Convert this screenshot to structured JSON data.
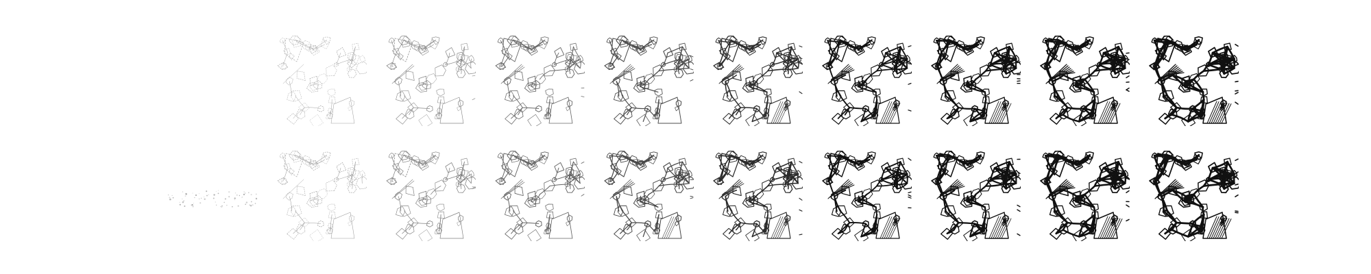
{
  "figure": {
    "rows": [
      {
        "id": "top",
        "frames": [
          {
            "step": 0,
            "level": 0.0
          },
          {
            "step": 1,
            "level": 0.15
          },
          {
            "step": 2,
            "level": 0.25
          },
          {
            "step": 3,
            "level": 0.38
          },
          {
            "step": 4,
            "level": 0.5
          },
          {
            "step": 5,
            "level": 0.62
          },
          {
            "step": 6,
            "level": 0.74
          },
          {
            "step": 7,
            "level": 0.85
          },
          {
            "step": 8,
            "level": 0.93
          },
          {
            "step": 9,
            "level": 1.0
          }
        ]
      },
      {
        "id": "bottom",
        "frames": [
          {
            "step": 0,
            "level": 0.04
          },
          {
            "step": 1,
            "level": 0.17
          },
          {
            "step": 2,
            "level": 0.28
          },
          {
            "step": 3,
            "level": 0.4
          },
          {
            "step": 4,
            "level": 0.52
          },
          {
            "step": 5,
            "level": 0.64
          },
          {
            "step": 6,
            "level": 0.76
          },
          {
            "step": 7,
            "level": 0.86
          },
          {
            "step": 8,
            "level": 0.94
          },
          {
            "step": 9,
            "level": 1.0
          }
        ]
      }
    ],
    "colors": {
      "ink": "#111111",
      "background": "#ffffff"
    }
  }
}
